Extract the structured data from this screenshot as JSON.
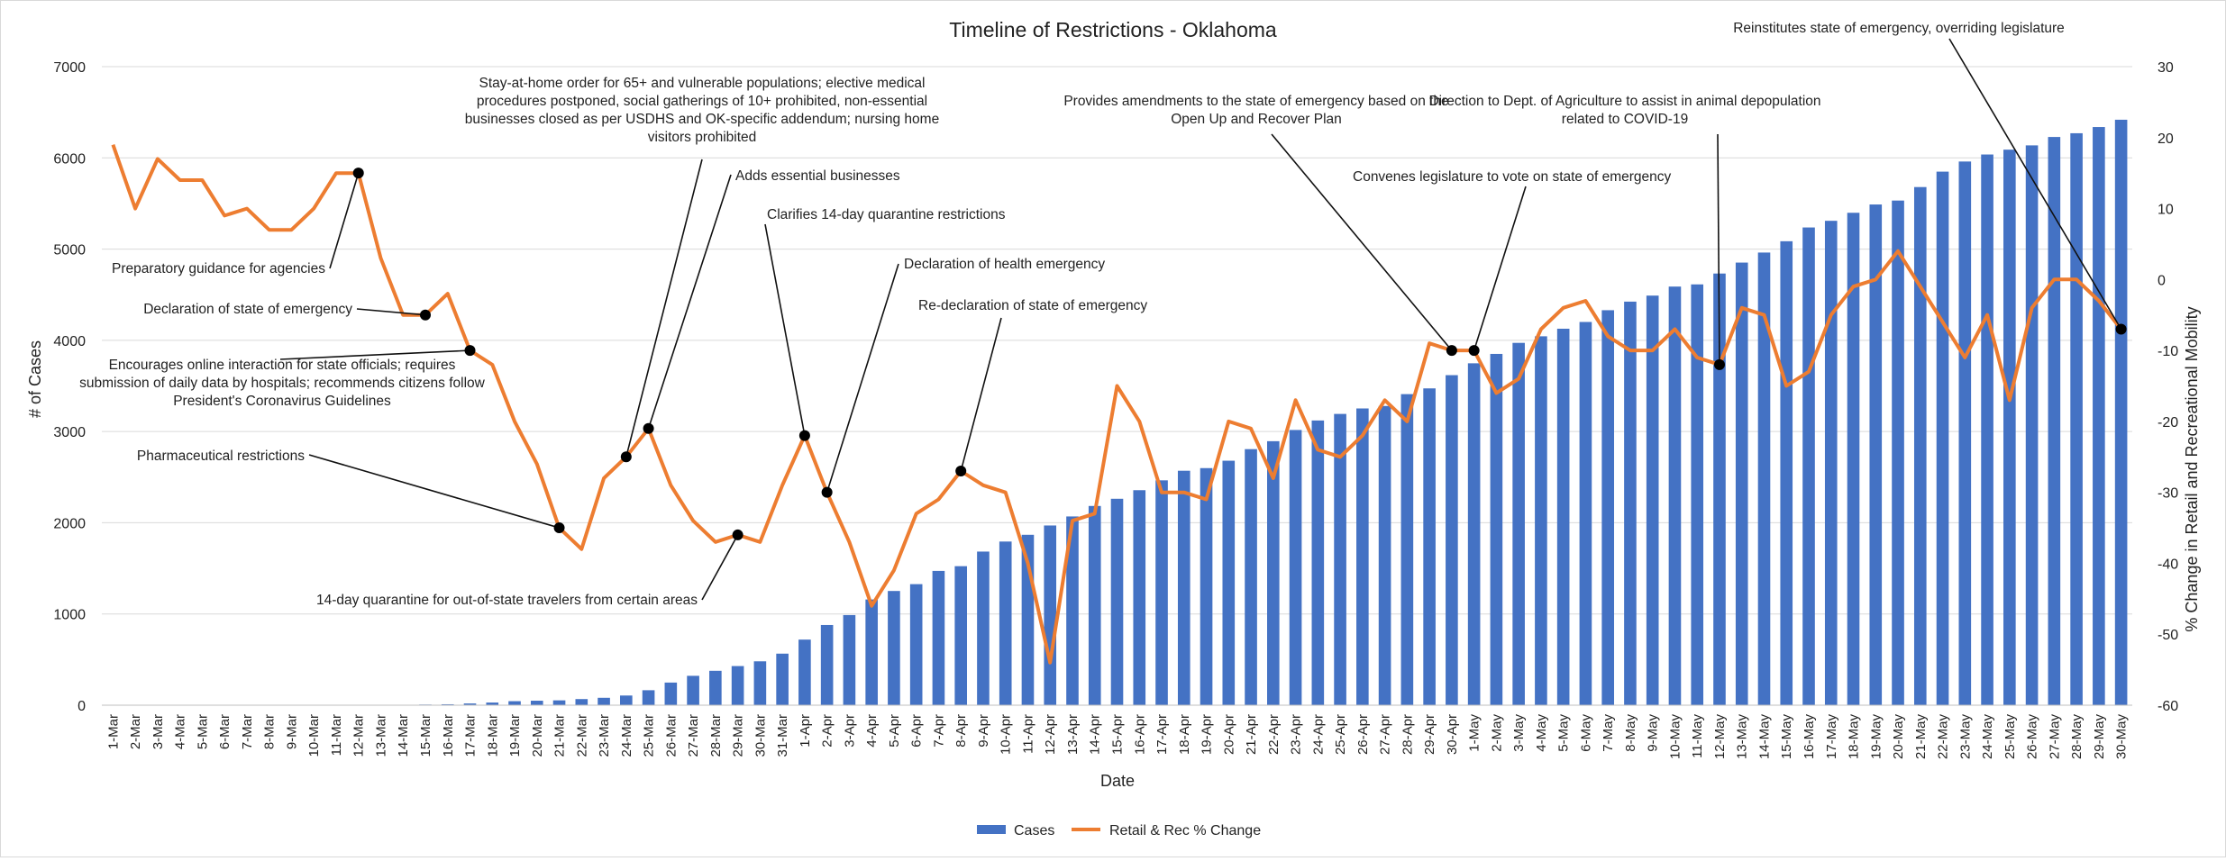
{
  "chart_data": {
    "type": "bar+line",
    "title": "Timeline of Restrictions - Oklahoma",
    "xlabel": "Date",
    "ylabel_left": "# of Cases",
    "ylabel_right": "% Change in Retail and Recreational Mobility",
    "ylim_left": [
      0,
      7000
    ],
    "ylim_right": [
      -60,
      30
    ],
    "yticks_left": [
      "0",
      "1000",
      "2000",
      "3000",
      "4000",
      "5000",
      "6000",
      "7000"
    ],
    "yticks_right": [
      "-60",
      "-50",
      "-40",
      "-30",
      "-20",
      "-10",
      "0",
      "10",
      "20",
      "30"
    ],
    "grid": true,
    "legend_position": "bottom",
    "categories": [
      "1-Mar",
      "2-Mar",
      "3-Mar",
      "4-Mar",
      "5-Mar",
      "6-Mar",
      "7-Mar",
      "8-Mar",
      "9-Mar",
      "10-Mar",
      "11-Mar",
      "12-Mar",
      "13-Mar",
      "14-Mar",
      "15-Mar",
      "16-Mar",
      "17-Mar",
      "18-Mar",
      "19-Mar",
      "20-Mar",
      "21-Mar",
      "22-Mar",
      "23-Mar",
      "24-Mar",
      "25-Mar",
      "26-Mar",
      "27-Mar",
      "28-Mar",
      "29-Mar",
      "30-Mar",
      "31-Mar",
      "1-Apr",
      "2-Apr",
      "3-Apr",
      "4-Apr",
      "5-Apr",
      "6-Apr",
      "7-Apr",
      "8-Apr",
      "9-Apr",
      "10-Apr",
      "11-Apr",
      "12-Apr",
      "13-Apr",
      "14-Apr",
      "15-Apr",
      "16-Apr",
      "17-Apr",
      "18-Apr",
      "19-Apr",
      "20-Apr",
      "21-Apr",
      "22-Apr",
      "23-Apr",
      "24-Apr",
      "25-Apr",
      "26-Apr",
      "27-Apr",
      "28-Apr",
      "29-Apr",
      "30-Apr",
      "1-May",
      "2-May",
      "3-May",
      "4-May",
      "5-May",
      "6-May",
      "7-May",
      "8-May",
      "9-May",
      "10-May",
      "11-May",
      "12-May",
      "13-May",
      "14-May",
      "15-May",
      "16-May",
      "17-May",
      "18-May",
      "19-May",
      "20-May",
      "21-May",
      "22-May",
      "23-May",
      "24-May",
      "25-May",
      "26-May",
      "27-May",
      "28-May",
      "29-May",
      "30-May"
    ],
    "series": [
      {
        "name": "Cases",
        "type": "bar",
        "color": "#4472C4",
        "axis": "left",
        "values": [
          0,
          0,
          0,
          0,
          0,
          0,
          0,
          1,
          1,
          2,
          2,
          3,
          3,
          4,
          7,
          10,
          19,
          29,
          44,
          49,
          53,
          67,
          81,
          106,
          164,
          248,
          322,
          377,
          429,
          481,
          565,
          719,
          879,
          988,
          1159,
          1252,
          1327,
          1472,
          1524,
          1684,
          1794,
          1868,
          1970,
          2069,
          2184,
          2263,
          2357,
          2465,
          2570,
          2599,
          2680,
          2807,
          2894,
          3017,
          3121,
          3193,
          3253,
          3280,
          3410,
          3473,
          3618,
          3748,
          3851,
          3972,
          4044,
          4127,
          4201,
          4330,
          4424,
          4490,
          4589,
          4613,
          4732,
          4852,
          4962,
          5086,
          5237,
          5310,
          5398,
          5489,
          5532,
          5680,
          5849,
          5960,
          6037,
          6090,
          6137,
          6229,
          6270,
          6338,
          6418
        ]
      },
      {
        "name": "Retail & Rec % Change",
        "type": "line",
        "color": "#ED7D31",
        "axis": "right",
        "values": [
          19,
          10,
          17,
          14,
          14,
          9,
          10,
          7,
          7,
          10,
          15,
          15,
          3,
          -5,
          -5,
          -2,
          -10,
          -12,
          -20,
          -26,
          -35,
          -38,
          -28,
          -25,
          -21,
          -29,
          -34,
          -37,
          -36,
          -37,
          -29,
          -22,
          -30,
          -37,
          -46,
          -41,
          -33,
          -31,
          -27,
          -29,
          -30,
          -40,
          -54,
          -34,
          -33,
          -15,
          -20,
          -30,
          -30,
          -31,
          -20,
          -21,
          -28,
          -17,
          -24,
          -25,
          -22,
          -17,
          -20,
          -9,
          -10,
          -10,
          -16,
          -14,
          -7,
          -4,
          -3,
          -8,
          -10,
          -10,
          -7,
          -11,
          -12,
          -4,
          -5,
          -15,
          -13,
          -5,
          -1,
          0,
          4,
          -1,
          -6,
          -11,
          -5,
          -17,
          -4,
          0,
          0,
          -3,
          -7
        ]
      }
    ],
    "annotations": [
      {
        "index": 11,
        "text": [
          "Preparatory guidance for agencies"
        ]
      },
      {
        "index": 14,
        "text": [
          "Declaration of state of emergency"
        ]
      },
      {
        "index": 16,
        "text": [
          "Encourages online interaction for state officials; requires",
          "submission of daily data by hospitals; recommends citizens follow",
          "President's Coronavirus Guidelines"
        ]
      },
      {
        "index": 20,
        "text": [
          "Pharmaceutical restrictions"
        ]
      },
      {
        "index": 23,
        "text": [
          "Stay-at-home order for 65+ and vulnerable populations; elective medical",
          "procedures postponed, social gatherings of 10+ prohibited, non-essential",
          "businesses closed as per USDHS and OK-specific addendum; nursing home",
          "visitors prohibited"
        ]
      },
      {
        "index": 24,
        "text": [
          "Adds essential businesses"
        ]
      },
      {
        "index": 28,
        "text": [
          "14-day quarantine for out-of-state travelers from certain areas"
        ]
      },
      {
        "index": 31,
        "text": [
          "Clarifies 14-day quarantine restrictions"
        ]
      },
      {
        "index": 32,
        "text": [
          "Declaration of health emergency"
        ]
      },
      {
        "index": 38,
        "text": [
          "Re-declaration of state of emergency"
        ]
      },
      {
        "index": 60,
        "text": [
          "Provides amendments to the state of emergency based on the",
          "Open Up and Recover Plan"
        ]
      },
      {
        "index": 61,
        "text": [
          "Convenes legislature to vote on state of emergency"
        ]
      },
      {
        "index": 72,
        "text": [
          "Direction to Dept. of Agriculture to assist in animal depopulation",
          "related to COVID-19"
        ]
      },
      {
        "index": 90,
        "text": [
          "Reinstitutes state of emergency, overriding legislature"
        ]
      }
    ]
  }
}
